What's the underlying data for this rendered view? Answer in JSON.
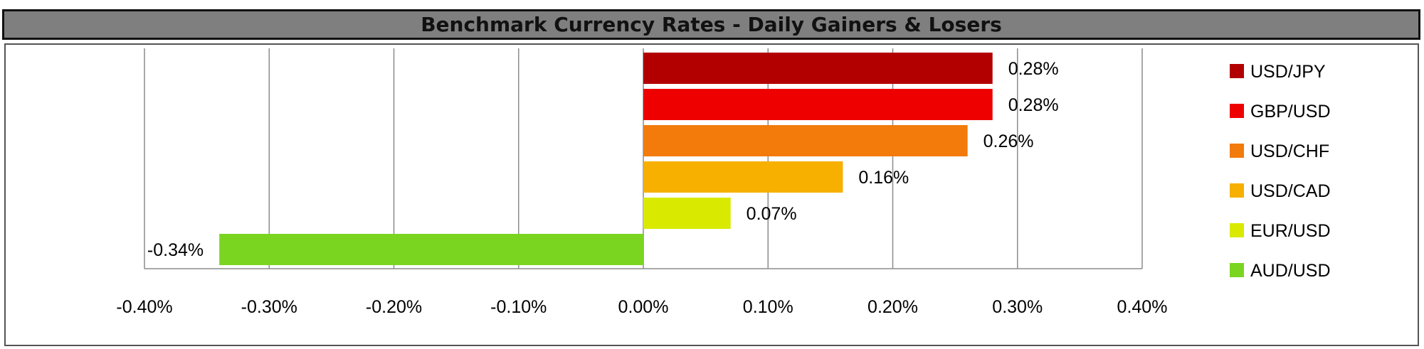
{
  "chart_data": {
    "type": "bar",
    "orientation": "horizontal",
    "title": "Benchmark Currency Rates - Daily Gainers & Losers",
    "categories": [
      "USD/JPY",
      "GBP/USD",
      "USD/CHF",
      "USD/CAD",
      "EUR/USD",
      "AUD/USD"
    ],
    "values": [
      0.28,
      0.28,
      0.26,
      0.16,
      0.07,
      -0.34
    ],
    "value_labels": [
      "0.28%",
      "0.28%",
      "0.26%",
      "0.16%",
      "0.07%",
      "-0.34%"
    ],
    "colors": [
      "#b20000",
      "#ee0000",
      "#f27b0c",
      "#f7b000",
      "#d9ea00",
      "#7ad520"
    ],
    "xlim": [
      -0.4,
      0.4
    ],
    "x_ticks": [
      -0.4,
      -0.3,
      -0.2,
      -0.1,
      0.0,
      0.1,
      0.2,
      0.3,
      0.4
    ],
    "x_tick_labels": [
      "-0.40%",
      "-0.30%",
      "-0.20%",
      "-0.10%",
      "0.00%",
      "0.10%",
      "0.20%",
      "0.30%",
      "0.40%"
    ],
    "grid": "vertical",
    "legend": "right"
  }
}
